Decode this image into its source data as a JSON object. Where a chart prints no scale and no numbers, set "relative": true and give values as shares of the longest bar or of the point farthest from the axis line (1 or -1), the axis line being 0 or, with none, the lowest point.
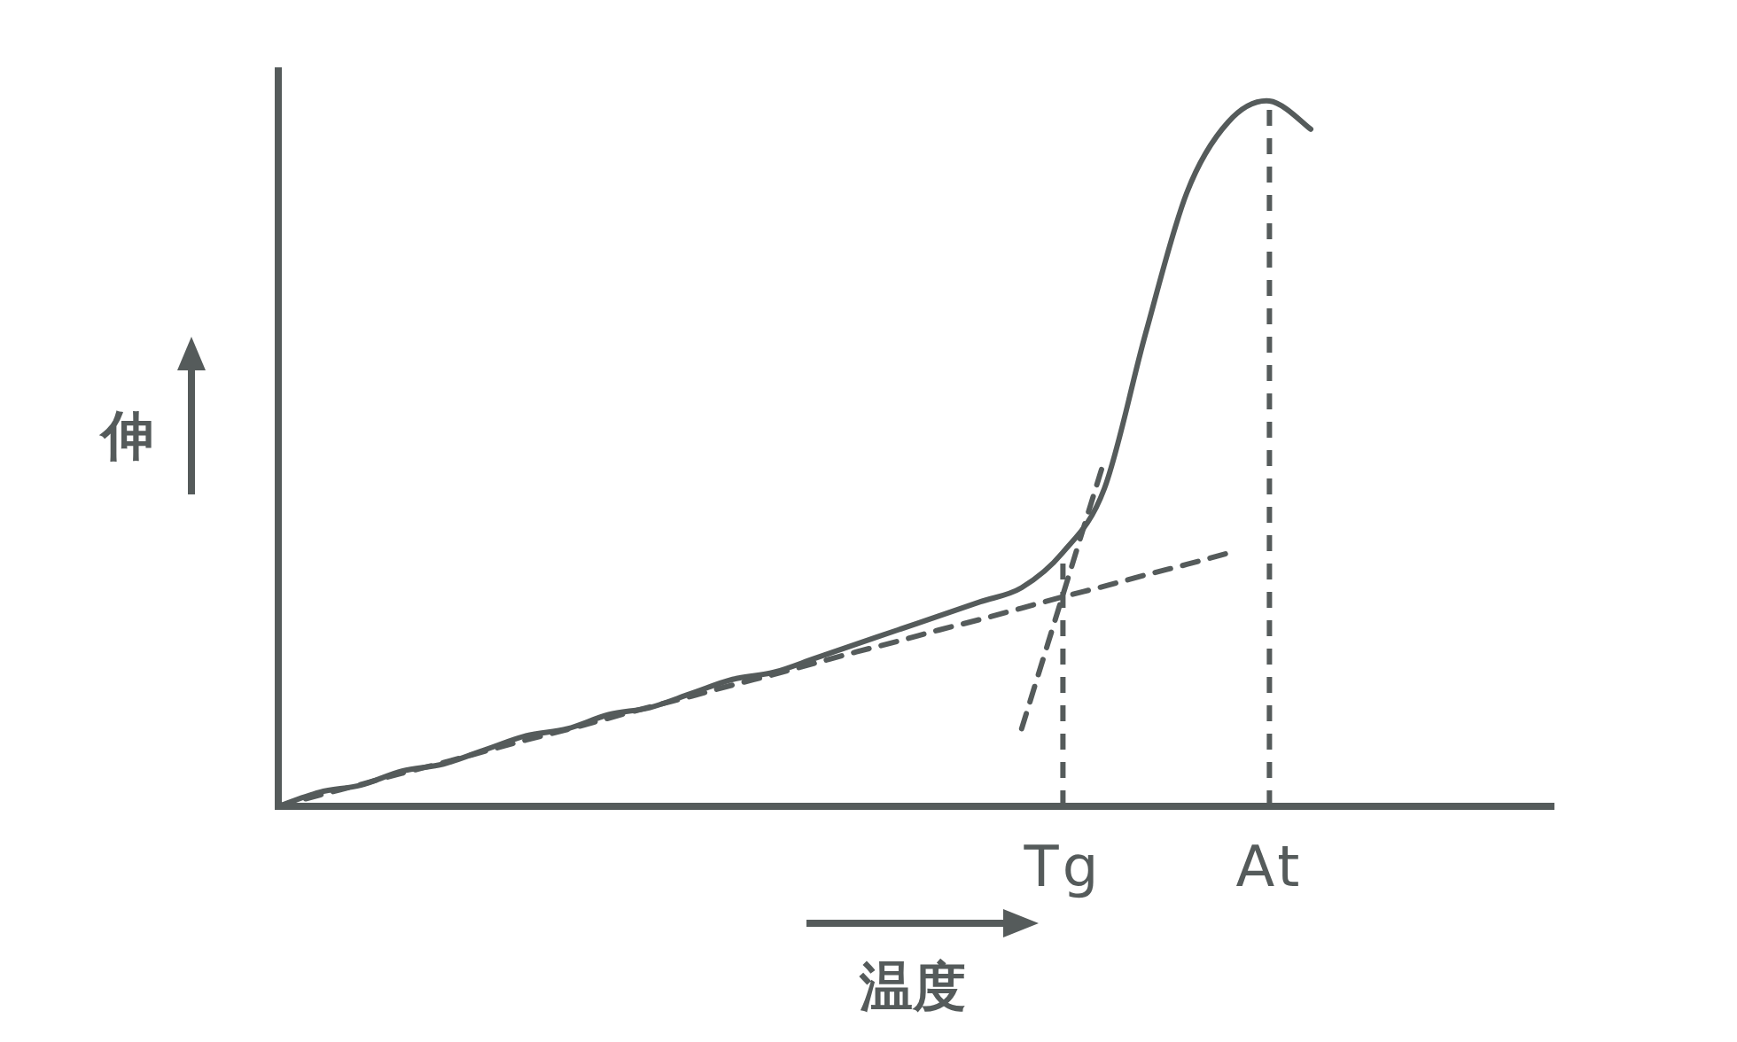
{
  "chart_data": {
    "type": "line",
    "relative": true,
    "xlabel": "温度",
    "ylabel": "伸",
    "tick_labels": "x",
    "grid": false,
    "marker": "none",
    "line_style": "solid",
    "categories": [
      null,
      null,
      null,
      null,
      null,
      null,
      null,
      null,
      null,
      null,
      null,
      null,
      null,
      null,
      null,
      null,
      null,
      null,
      null,
      "Tg",
      null,
      null,
      null,
      null,
      "At",
      null,
      null,
      null,
      null,
      null,
      null,
      null
    ],
    "series": [
      {
        "color": "#555b5b",
        "values": [
          0,
          0.02,
          0.03,
          0.05,
          0.06,
          0.08,
          0.1,
          0.11,
          0.13,
          0.14,
          0.16,
          0.18,
          0.19,
          0.21,
          0.23,
          0.25,
          0.27,
          0.29,
          0.31,
          0.36,
          0.45,
          0.67,
          0.87,
          0.97,
          1,
          0.96,
          null,
          null,
          null,
          null,
          null,
          null
        ]
      },
      {
        "type": "line",
        "color": "#555b5b",
        "line_style": "dashed",
        "values": [
          0,
          0.016,
          0.031,
          0.047,
          0.062,
          0.078,
          0.094,
          0.109,
          0.125,
          0.141,
          0.156,
          0.172,
          0.187,
          0.203,
          0.219,
          0.234,
          0.25,
          0.265,
          0.281,
          0.297,
          0.312,
          0.328,
          0.343,
          0.359,
          null,
          null,
          null,
          null,
          null,
          null,
          null,
          null
        ]
      },
      {
        "type": "line",
        "color": "#555b5b",
        "line_style": "dashed",
        "values": [
          null,
          null,
          null,
          null,
          null,
          null,
          null,
          null,
          null,
          null,
          null,
          null,
          null,
          null,
          null,
          null,
          null,
          null,
          0.11,
          0.3,
          0.49,
          null,
          null,
          null,
          null,
          null,
          null,
          null,
          null,
          null,
          null,
          null
        ]
      }
    ],
    "ref_lines": [
      {
        "axis": "x",
        "value": "Tg",
        "line_style": "dashed",
        "color": "#555b5b"
      },
      {
        "axis": "x",
        "value": "At",
        "line_style": "dashed",
        "color": "#555b5b"
      }
    ]
  }
}
